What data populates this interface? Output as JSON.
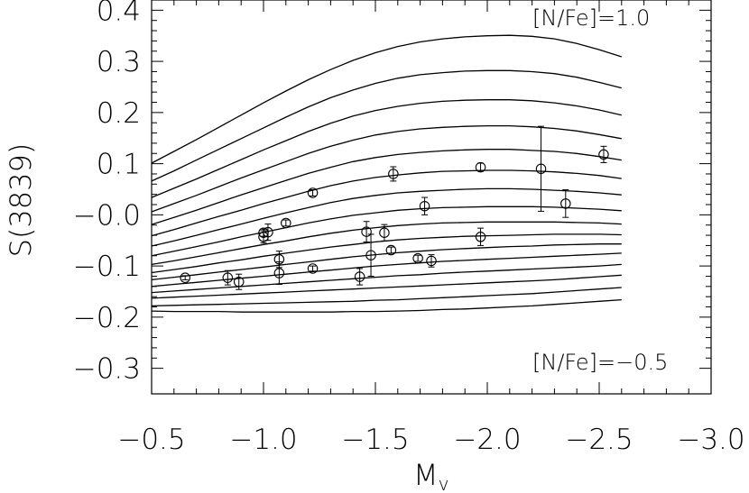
{
  "chart_data": {
    "type": "line",
    "title": "",
    "xlabel": "M",
    "xlabel_sub": "v",
    "ylabel": "S(3839)",
    "xlim": [
      -0.5,
      -3.0
    ],
    "ylim": [
      -0.35,
      0.42
    ],
    "x_ticks": [
      -0.5,
      -1.0,
      -1.5,
      -2.0,
      -2.5,
      -3.0
    ],
    "x_tick_labels": [
      "−0.5",
      "−1.0",
      "−1.5",
      "−2.0",
      "−2.5",
      "−3.0"
    ],
    "y_ticks": [
      0.4,
      0.3,
      0.2,
      0.1,
      0.0,
      -0.1,
      -0.2,
      -0.3
    ],
    "y_tick_labels": [
      "0.4",
      "0.3",
      "0.2",
      "0.1",
      "−0.0",
      "−0.1",
      "−0.2",
      "−0.3"
    ],
    "annotations": {
      "top": "[N/Fe]=1.0",
      "bottom": "[N/Fe]=−0.5"
    },
    "model_x": [
      -0.5,
      -0.6,
      -0.7,
      -0.8,
      -0.9,
      -1.0,
      -1.1,
      -1.2,
      -1.3,
      -1.4,
      -1.5,
      -1.6,
      -1.7,
      -1.8,
      -1.9,
      -2.0,
      -2.1,
      -2.2,
      -2.3,
      -2.4,
      -2.5,
      -2.6
    ],
    "model_curves": [
      {
        "value": 1.0,
        "y": [
          0.101,
          0.124,
          0.147,
          0.171,
          0.195,
          0.219,
          0.242,
          0.264,
          0.284,
          0.302,
          0.317,
          0.329,
          0.338,
          0.344,
          0.348,
          0.35,
          0.351,
          0.349,
          0.344,
          0.335,
          0.323,
          0.309
        ]
      },
      {
        "value": 0.9,
        "y": [
          0.066,
          0.086,
          0.107,
          0.128,
          0.149,
          0.17,
          0.191,
          0.211,
          0.229,
          0.244,
          0.257,
          0.267,
          0.274,
          0.278,
          0.281,
          0.282,
          0.282,
          0.28,
          0.276,
          0.269,
          0.259,
          0.248
        ]
      },
      {
        "value": 0.8,
        "y": [
          0.034,
          0.052,
          0.07,
          0.089,
          0.108,
          0.127,
          0.145,
          0.163,
          0.179,
          0.193,
          0.204,
          0.212,
          0.218,
          0.222,
          0.224,
          0.225,
          0.225,
          0.223,
          0.219,
          0.213,
          0.205,
          0.195
        ]
      },
      {
        "value": 0.7,
        "y": [
          0.006,
          0.022,
          0.038,
          0.055,
          0.072,
          0.088,
          0.104,
          0.12,
          0.134,
          0.146,
          0.156,
          0.163,
          0.168,
          0.171,
          0.173,
          0.174,
          0.174,
          0.172,
          0.169,
          0.164,
          0.157,
          0.149
        ]
      },
      {
        "value": 0.6,
        "y": [
          -0.019,
          -0.005,
          0.009,
          0.024,
          0.039,
          0.053,
          0.067,
          0.081,
          0.093,
          0.104,
          0.112,
          0.118,
          0.122,
          0.125,
          0.127,
          0.128,
          0.128,
          0.126,
          0.124,
          0.12,
          0.114,
          0.107
        ]
      },
      {
        "value": 0.5,
        "y": [
          -0.041,
          -0.029,
          -0.016,
          -0.003,
          0.009,
          0.022,
          0.034,
          0.046,
          0.057,
          0.066,
          0.073,
          0.078,
          0.082,
          0.085,
          0.086,
          0.087,
          0.087,
          0.086,
          0.084,
          0.081,
          0.077,
          0.071
        ]
      },
      {
        "value": 0.4,
        "y": [
          -0.061,
          -0.051,
          -0.04,
          -0.029,
          -0.018,
          -0.007,
          0.004,
          0.014,
          0.024,
          0.032,
          0.038,
          0.043,
          0.046,
          0.048,
          0.05,
          0.051,
          0.051,
          0.05,
          0.048,
          0.046,
          0.043,
          0.039
        ]
      },
      {
        "value": 0.3,
        "y": [
          -0.08,
          -0.071,
          -0.062,
          -0.053,
          -0.043,
          -0.034,
          -0.025,
          -0.016,
          -0.008,
          -0.001,
          0.004,
          0.009,
          0.012,
          0.014,
          0.015,
          0.016,
          0.016,
          0.016,
          0.015,
          0.013,
          0.011,
          0.008
        ]
      },
      {
        "value": 0.2,
        "y": [
          -0.097,
          -0.09,
          -0.082,
          -0.074,
          -0.066,
          -0.058,
          -0.051,
          -0.043,
          -0.036,
          -0.03,
          -0.025,
          -0.021,
          -0.018,
          -0.016,
          -0.015,
          -0.014,
          -0.014,
          -0.014,
          -0.014,
          -0.015,
          -0.016,
          -0.018
        ]
      },
      {
        "value": 0.1,
        "y": [
          -0.113,
          -0.107,
          -0.101,
          -0.094,
          -0.088,
          -0.081,
          -0.075,
          -0.069,
          -0.063,
          -0.058,
          -0.053,
          -0.049,
          -0.046,
          -0.044,
          -0.042,
          -0.041,
          -0.04,
          -0.039,
          -0.038,
          -0.038,
          -0.038,
          -0.039
        ]
      },
      {
        "value": 0.0,
        "y": [
          -0.127,
          -0.122,
          -0.117,
          -0.112,
          -0.107,
          -0.102,
          -0.097,
          -0.092,
          -0.087,
          -0.082,
          -0.078,
          -0.074,
          -0.071,
          -0.068,
          -0.066,
          -0.064,
          -0.062,
          -0.061,
          -0.059,
          -0.058,
          -0.057,
          -0.057
        ]
      },
      {
        "value": -0.1,
        "y": [
          -0.14,
          -0.136,
          -0.132,
          -0.128,
          -0.124,
          -0.12,
          -0.116,
          -0.112,
          -0.108,
          -0.104,
          -0.1,
          -0.097,
          -0.094,
          -0.091,
          -0.089,
          -0.087,
          -0.085,
          -0.083,
          -0.081,
          -0.079,
          -0.077,
          -0.075
        ]
      },
      {
        "value": -0.2,
        "y": [
          -0.152,
          -0.149,
          -0.146,
          -0.143,
          -0.14,
          -0.137,
          -0.134,
          -0.131,
          -0.128,
          -0.125,
          -0.122,
          -0.119,
          -0.117,
          -0.114,
          -0.112,
          -0.11,
          -0.108,
          -0.106,
          -0.104,
          -0.102,
          -0.1,
          -0.097
        ]
      },
      {
        "value": -0.3,
        "y": [
          -0.163,
          -0.161,
          -0.159,
          -0.157,
          -0.155,
          -0.153,
          -0.151,
          -0.149,
          -0.147,
          -0.145,
          -0.143,
          -0.141,
          -0.139,
          -0.137,
          -0.135,
          -0.133,
          -0.131,
          -0.129,
          -0.127,
          -0.124,
          -0.121,
          -0.118
        ]
      },
      {
        "value": -0.4,
        "y": [
          -0.178,
          -0.177,
          -0.176,
          -0.175,
          -0.174,
          -0.173,
          -0.172,
          -0.171,
          -0.17,
          -0.169,
          -0.167,
          -0.166,
          -0.164,
          -0.162,
          -0.16,
          -0.158,
          -0.156,
          -0.154,
          -0.151,
          -0.148,
          -0.145,
          -0.142
        ]
      },
      {
        "value": -0.5,
        "y": [
          -0.188,
          -0.189,
          -0.189,
          -0.189,
          -0.19,
          -0.19,
          -0.19,
          -0.19,
          -0.19,
          -0.189,
          -0.189,
          -0.188,
          -0.187,
          -0.185,
          -0.184,
          -0.182,
          -0.18,
          -0.178,
          -0.175,
          -0.172,
          -0.169,
          -0.166
        ]
      }
    ],
    "points": [
      {
        "x": -0.65,
        "y": -0.123,
        "err": 0.004
      },
      {
        "x": -0.84,
        "y": -0.123,
        "err": 0.014
      },
      {
        "x": -0.89,
        "y": -0.131,
        "err": 0.015
      },
      {
        "x": -1.0,
        "y": -0.043,
        "err": 0.012
      },
      {
        "x": -1.0,
        "y": -0.035,
        "err": 0.007
      },
      {
        "x": -1.02,
        "y": -0.034,
        "err": 0.016
      },
      {
        "x": -1.07,
        "y": -0.087,
        "err": 0.016
      },
      {
        "x": -1.07,
        "y": -0.114,
        "err": 0.022
      },
      {
        "x": -1.1,
        "y": -0.016,
        "err": 0.006
      },
      {
        "x": -1.22,
        "y": 0.043,
        "err": 0.006
      },
      {
        "x": -1.22,
        "y": -0.105,
        "err": 0.005
      },
      {
        "x": -1.43,
        "y": -0.121,
        "err": 0.016
      },
      {
        "x": -1.46,
        "y": -0.033,
        "err": 0.02
      },
      {
        "x": -1.48,
        "y": -0.079,
        "err": 0.041
      },
      {
        "x": -1.54,
        "y": -0.035,
        "err": 0.016
      },
      {
        "x": -1.57,
        "y": -0.069,
        "err": 0.006
      },
      {
        "x": -1.58,
        "y": 0.08,
        "err": 0.014
      },
      {
        "x": -1.69,
        "y": -0.085,
        "err": 0.006
      },
      {
        "x": -1.72,
        "y": 0.017,
        "err": 0.017
      },
      {
        "x": -1.75,
        "y": -0.09,
        "err": 0.012
      },
      {
        "x": -1.97,
        "y": 0.093,
        "err": 0.008
      },
      {
        "x": -1.97,
        "y": -0.043,
        "err": 0.017
      },
      {
        "x": -2.24,
        "y": 0.09,
        "err": 0.083
      },
      {
        "x": -2.35,
        "y": 0.022,
        "err": 0.027
      },
      {
        "x": -2.52,
        "y": 0.118,
        "err": 0.016
      }
    ]
  }
}
